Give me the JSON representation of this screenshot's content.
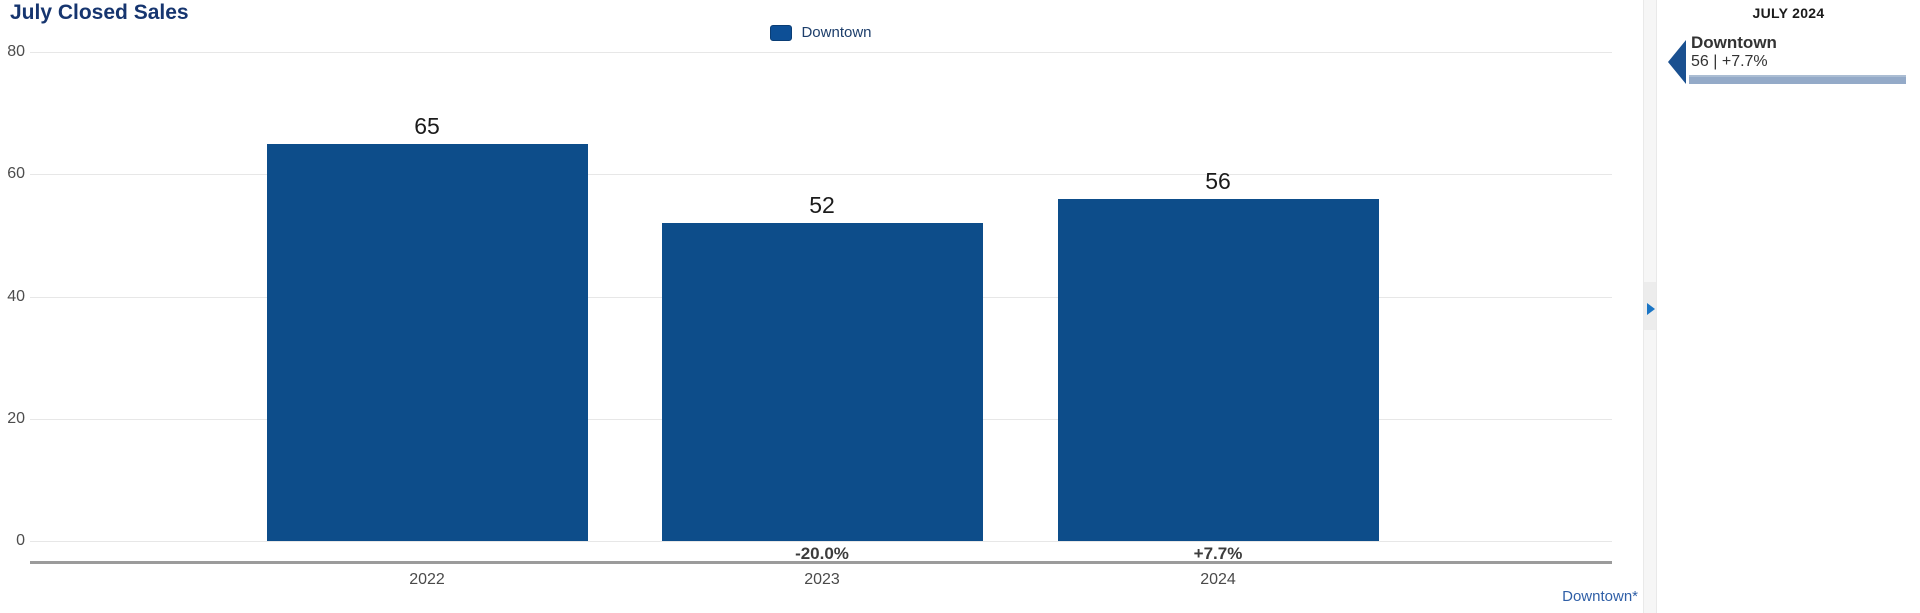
{
  "title": "July Closed Sales",
  "legend": {
    "items": [
      {
        "label": "Downtown",
        "color": "#0d4f96"
      }
    ]
  },
  "chart_data": {
    "type": "bar",
    "title": "July Closed Sales",
    "categories": [
      "2022",
      "2023",
      "2024"
    ],
    "series": [
      {
        "name": "Downtown",
        "values": [
          65,
          52,
          56
        ]
      }
    ],
    "value_labels": [
      "65",
      "52",
      "56"
    ],
    "change_labels": [
      "",
      "-20.0%",
      "+7.7%"
    ],
    "xlabel": "",
    "ylabel": "",
    "ylim": [
      0,
      80
    ],
    "yticks": [
      80,
      60,
      40,
      20,
      0
    ],
    "grid": true,
    "legend_position": "top-center",
    "bar_color": "#0d4d8a"
  },
  "footnote": "Downtown*",
  "sidebar": {
    "header": "JULY 2024",
    "indicator": {
      "name": "Downtown",
      "value_line": "56 | +7.7%",
      "value": 56,
      "change_pct": "+7.7%",
      "bar_color": "#94aac8"
    }
  },
  "colors": {
    "bar": "#0d4d8a",
    "title": "#16356f",
    "gridline": "#e7e7e7",
    "axis_line": "#9b9b9b",
    "footnote_link": "#2f5fa7",
    "sidebar_triangle": "#1a5090",
    "splitter_arrow": "#1a75c5"
  }
}
